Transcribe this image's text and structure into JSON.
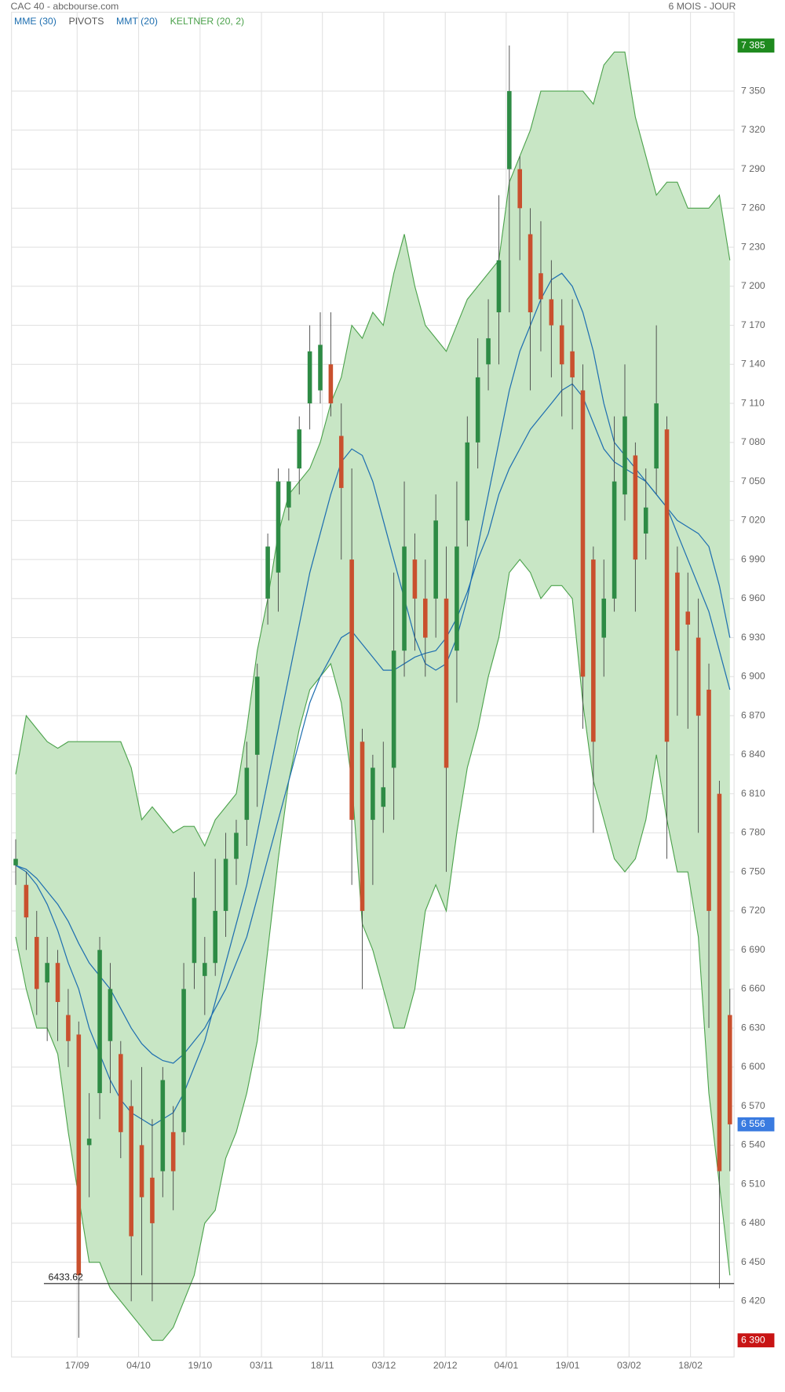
{
  "chart_data": {
    "type": "candlestick",
    "source": "CAC 40 - abcbourse.com",
    "period": "6 MOIS - JOUR",
    "legend": [
      "MME (30)",
      "PIVOTS",
      "MMT (20)",
      "KELTNER (20, 2)"
    ],
    "legend_colors": [
      "#1f6fb0",
      "#555555",
      "#1f6fb0",
      "#4ca24c"
    ],
    "up_color": "#2e8b45",
    "down_color": "#c9502e",
    "grid": true,
    "ylim": [
      6390,
      7385
    ],
    "yticks": [
      {
        "value": 7350,
        "label": "7 350"
      },
      {
        "value": 7320,
        "label": "7 320"
      },
      {
        "value": 7290,
        "label": "7 290"
      },
      {
        "value": 7260,
        "label": "7 260"
      },
      {
        "value": 7230,
        "label": "7 230"
      },
      {
        "value": 7200,
        "label": "7 200"
      },
      {
        "value": 7170,
        "label": "7 170"
      },
      {
        "value": 7140,
        "label": "7 140"
      },
      {
        "value": 7110,
        "label": "7 110"
      },
      {
        "value": 7080,
        "label": "7 080"
      },
      {
        "value": 7050,
        "label": "7 050"
      },
      {
        "value": 7020,
        "label": "7 020"
      },
      {
        "value": 6990,
        "label": "6 990"
      },
      {
        "value": 6960,
        "label": "6 960"
      },
      {
        "value": 6930,
        "label": "6 930"
      },
      {
        "value": 6900,
        "label": "6 900"
      },
      {
        "value": 6870,
        "label": "6 870"
      },
      {
        "value": 6840,
        "label": "6 840"
      },
      {
        "value": 6810,
        "label": "6 810"
      },
      {
        "value": 6780,
        "label": "6 780"
      },
      {
        "value": 6750,
        "label": "6 750"
      },
      {
        "value": 6720,
        "label": "6 720"
      },
      {
        "value": 6690,
        "label": "6 690"
      },
      {
        "value": 6660,
        "label": "6 660"
      },
      {
        "value": 6630,
        "label": "6 630"
      },
      {
        "value": 6600,
        "label": "6 600"
      },
      {
        "value": 6570,
        "label": "6 570"
      },
      {
        "value": 6540,
        "label": "6 540"
      },
      {
        "value": 6510,
        "label": "6 510"
      },
      {
        "value": 6480,
        "label": "6 480"
      },
      {
        "value": 6450,
        "label": "6 450"
      },
      {
        "value": 6420,
        "label": "6 420"
      }
    ],
    "price_markers": [
      {
        "value": 7385,
        "label": "7 385",
        "color": "#1e8a1e"
      },
      {
        "value": 6556,
        "label": "6 556",
        "color": "#3a7be0"
      },
      {
        "value": 6390,
        "label": "6 390",
        "color": "#c81414"
      }
    ],
    "support": 6433.62,
    "xlim": [
      -0.4,
      68.4
    ],
    "xticks": [
      {
        "value": 5.85,
        "label": "17/09"
      },
      {
        "value": 11.7,
        "label": "04/10"
      },
      {
        "value": 17.55,
        "label": "19/10"
      },
      {
        "value": 23.4,
        "label": "03/11"
      },
      {
        "value": 29.2,
        "label": "18/11"
      },
      {
        "value": 35.05,
        "label": "03/12"
      },
      {
        "value": 40.9,
        "label": "20/12"
      },
      {
        "value": 46.7,
        "label": "04/01"
      },
      {
        "value": 52.55,
        "label": "19/01"
      },
      {
        "value": 58.4,
        "label": "03/02"
      },
      {
        "value": 64.25,
        "label": "18/02"
      }
    ],
    "candles": {
      "open": [
        6755,
        6740,
        6700,
        6665,
        6680,
        6640,
        6625,
        6540,
        6580,
        6620,
        6610,
        6570,
        6540,
        6515,
        6520,
        6550,
        6550,
        6680,
        6670,
        6680,
        6720,
        6760,
        6790,
        6840,
        6960,
        6980,
        7030,
        7060,
        7110,
        7120,
        7140,
        7085,
        6990,
        6850,
        6790,
        6800,
        6830,
        6920,
        6990,
        6960,
        6960,
        6960,
        6920,
        7020,
        7080,
        7140,
        7180,
        7290,
        7290,
        7240,
        7210,
        7190,
        7170,
        7150,
        7120,
        6990,
        6930,
        6960,
        7040,
        7070,
        7010,
        7060,
        7090,
        6980,
        6950,
        6930,
        6890,
        6810,
        6640
      ],
      "high": [
        6775,
        6750,
        6720,
        6700,
        6690,
        6660,
        6635,
        6580,
        6700,
        6680,
        6620,
        6590,
        6600,
        6560,
        6600,
        6570,
        6680,
        6750,
        6700,
        6760,
        6780,
        6790,
        6850,
        6910,
        7010,
        7060,
        7060,
        7100,
        7170,
        7180,
        7180,
        7110,
        7060,
        6860,
        6840,
        6850,
        6980,
        7050,
        7010,
        6990,
        7040,
        7000,
        7050,
        7100,
        7160,
        7190,
        7270,
        7385,
        7300,
        7260,
        7250,
        7220,
        7190,
        7190,
        7140,
        7000,
        6990,
        7100,
        7140,
        7080,
        7060,
        7170,
        7100,
        7000,
        6980,
        6960,
        6910,
        6820,
        6660
      ],
      "low": [
        6740,
        6690,
        6640,
        6620,
        6620,
        6600,
        6392,
        6500,
        6560,
        6580,
        6530,
        6420,
        6440,
        6420,
        6500,
        6490,
        6540,
        6660,
        6640,
        6670,
        6700,
        6740,
        6770,
        6800,
        6940,
        6950,
        7020,
        7040,
        7090,
        7110,
        7100,
        6990,
        6740,
        6660,
        6740,
        6780,
        6790,
        6900,
        6920,
        6900,
        6930,
        6750,
        6880,
        7000,
        7060,
        7120,
        7140,
        7180,
        7220,
        7120,
        7150,
        7130,
        7100,
        7090,
        6860,
        6780,
        6900,
        6950,
        7020,
        6950,
        6990,
        7040,
        6760,
        6870,
        6860,
        6780,
        6630,
        6430,
        6520
      ],
      "close": [
        6760,
        6715,
        6660,
        6680,
        6650,
        6620,
        6440,
        6545,
        6690,
        6660,
        6550,
        6470,
        6500,
        6480,
        6590,
        6520,
        6660,
        6730,
        6680,
        6720,
        6760,
        6780,
        6830,
        6900,
        7000,
        7050,
        7050,
        7090,
        7150,
        7155,
        7110,
        7045,
        6790,
        6720,
        6830,
        6815,
        6920,
        7000,
        6960,
        6930,
        7020,
        6830,
        7000,
        7080,
        7130,
        7160,
        7220,
        7350,
        7260,
        7180,
        7190,
        7170,
        7140,
        7130,
        6900,
        6850,
        6960,
        7050,
        7100,
        6990,
        7030,
        7110,
        6850,
        6920,
        6940,
        6870,
        6720,
        6520,
        6556
      ]
    },
    "series": [
      {
        "name": "KELTNER (20, 2)",
        "color": "#4ca24c",
        "fill": "#c8e6c5",
        "values": [
          6825,
          6870,
          6860,
          6850,
          6845,
          6850,
          6850,
          6850,
          6850,
          6850,
          6850,
          6830,
          6790,
          6800,
          6790,
          6780,
          6785,
          6785,
          6770,
          6790,
          6800,
          6810,
          6860,
          6920,
          6960,
          7010,
          7040,
          7050,
          7060,
          7080,
          7110,
          7130,
          7170,
          7160,
          7180,
          7170,
          7210,
          7240,
          7200,
          7170,
          7160,
          7150,
          7170,
          7190,
          7200,
          7210,
          7220,
          7280,
          7300,
          7320,
          7350,
          7350,
          7350,
          7350,
          7350,
          7340,
          7370,
          7380,
          7380,
          7330,
          7300,
          7270,
          7280,
          7280,
          7260,
          7260,
          7260,
          7270,
          7220
        ],
        "lower": [
          6700,
          6660,
          6630,
          6630,
          6610,
          6550,
          6500,
          6450,
          6450,
          6430,
          6420,
          6410,
          6400,
          6390,
          6390,
          6400,
          6420,
          6440,
          6480,
          6490,
          6530,
          6550,
          6580,
          6620,
          6690,
          6760,
          6820,
          6860,
          6890,
          6900,
          6910,
          6880,
          6820,
          6710,
          6690,
          6660,
          6630,
          6630,
          6660,
          6720,
          6740,
          6720,
          6780,
          6830,
          6860,
          6900,
          6930,
          6980,
          6990,
          6980,
          6960,
          6970,
          6970,
          6960,
          6880,
          6820,
          6790,
          6760,
          6750,
          6760,
          6790,
          6840,
          6790,
          6750,
          6750,
          6700,
          6580,
          6510,
          6440
        ]
      },
      {
        "name": "MME (30)",
        "color": "#1f6fb0",
        "values": [
          6755,
          6752,
          6745,
          6735,
          6725,
          6712,
          6695,
          6680,
          6670,
          6660,
          6645,
          6630,
          6618,
          6610,
          6605,
          6603,
          6610,
          6620,
          6630,
          6645,
          6660,
          6680,
          6700,
          6730,
          6760,
          6790,
          6820,
          6850,
          6880,
          6900,
          6915,
          6930,
          6935,
          6925,
          6915,
          6905,
          6905,
          6910,
          6915,
          6918,
          6920,
          6930,
          6945,
          6965,
          6990,
          7010,
          7040,
          7060,
          7075,
          7090,
          7100,
          7110,
          7120,
          7125,
          7115,
          7095,
          7075,
          7065,
          7060,
          7055,
          7050,
          7040,
          7030,
          7020,
          7015,
          7010,
          7000,
          6970,
          6930
        ]
      },
      {
        "name": "MMT (20)",
        "color": "#1f6fb0",
        "values": [
          6755,
          6750,
          6740,
          6725,
          6705,
          6680,
          6660,
          6630,
          6610,
          6590,
          6575,
          6565,
          6560,
          6555,
          6560,
          6565,
          6580,
          6600,
          6620,
          6650,
          6680,
          6710,
          6740,
          6780,
          6820,
          6860,
          6900,
          6940,
          6980,
          7010,
          7040,
          7065,
          7075,
          7070,
          7050,
          7020,
          6990,
          6960,
          6930,
          6910,
          6905,
          6910,
          6930,
          6960,
          7000,
          7040,
          7080,
          7120,
          7150,
          7170,
          7190,
          7205,
          7210,
          7200,
          7180,
          7150,
          7110,
          7080,
          7070,
          7060,
          7050,
          7040,
          7030,
          7010,
          6990,
          6970,
          6950,
          6920,
          6890
        ]
      }
    ]
  }
}
